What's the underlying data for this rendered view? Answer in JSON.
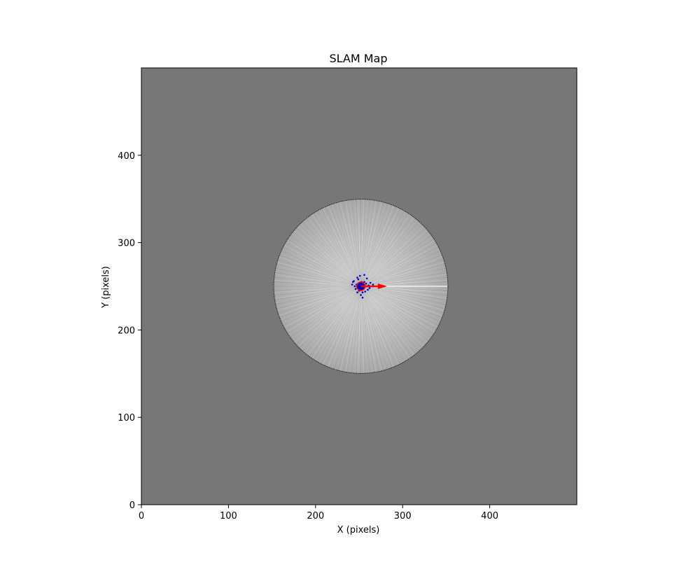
{
  "chart_data": {
    "type": "heatmap",
    "title": "SLAM Map",
    "xlabel": "X (pixels)",
    "ylabel": "Y (pixels)",
    "xlim": [
      0,
      500
    ],
    "ylim": [
      0,
      500
    ],
    "xticks": [
      0,
      100,
      200,
      300,
      400
    ],
    "yticks": [
      0,
      100,
      200,
      300,
      400
    ],
    "grid": false,
    "colormap": "gray",
    "colors": {
      "unknown": "#777777",
      "free_center": "#f2f2f2",
      "free_edge": "#a8a8a8",
      "boundary": "#1a1a1a",
      "particles": "#0000cc",
      "robot_marker": "#0000cc",
      "heading_arrow": "#ff0000"
    },
    "explored_region": {
      "center": [
        252,
        250
      ],
      "radius": 100
    },
    "robot": {
      "x": 252,
      "y": 250,
      "heading_deg": 0,
      "arrow_length": 30
    },
    "particles": [
      [
        244,
        256
      ],
      [
        247,
        252
      ],
      [
        249,
        258
      ],
      [
        250,
        245
      ],
      [
        255,
        247
      ],
      [
        258,
        253
      ],
      [
        261,
        251
      ],
      [
        262,
        248
      ],
      [
        256,
        263
      ],
      [
        259,
        259
      ],
      [
        245,
        250
      ],
      [
        243,
        255
      ],
      [
        248,
        243
      ],
      [
        252,
        240
      ],
      [
        254,
        237
      ],
      [
        257,
        244
      ],
      [
        263,
        254
      ],
      [
        266,
        252
      ],
      [
        251,
        262
      ],
      [
        246,
        247
      ],
      [
        253,
        255
      ],
      [
        249,
        253
      ],
      [
        256,
        255
      ],
      [
        250,
        249
      ],
      [
        254,
        243
      ],
      [
        260,
        246
      ],
      [
        248,
        260
      ],
      [
        242,
        252
      ],
      [
        257,
        250
      ],
      [
        253,
        246
      ]
    ]
  }
}
